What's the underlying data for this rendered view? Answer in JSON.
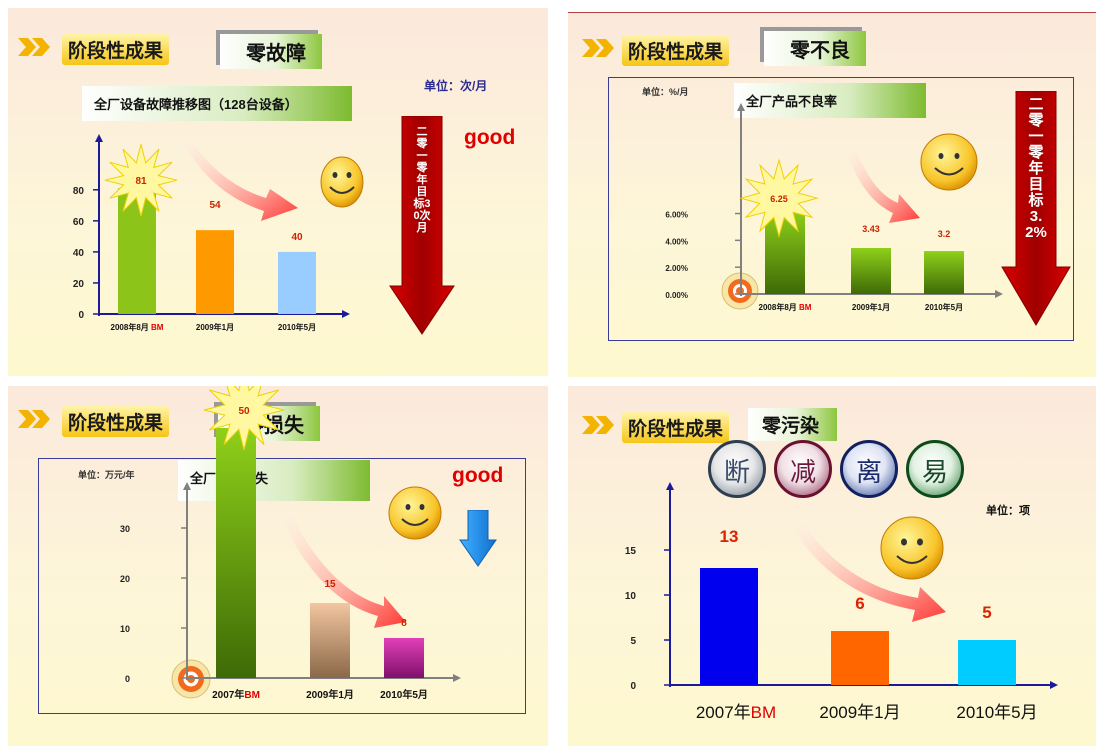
{
  "common": {
    "stage_badge": "阶段性成果"
  },
  "panel1": {
    "topic": "零故障",
    "unit": "单位：次/月",
    "good": "good",
    "arrow_text": "二零一零年目标30次月",
    "chart_title": "全厂设备故障推移图（128台设备）"
  },
  "panel2": {
    "topic": "零不良",
    "unit": "单位：%/月",
    "arrow_text": "二零一零年目标3.2%",
    "chart_title": "全厂产品不良率"
  },
  "panel3": {
    "topic": "零损失",
    "unit": "单位：万元/年",
    "good": "good",
    "chart_title": "全厂资源损失"
  },
  "panel4": {
    "topic": "零污染",
    "unit": "单位：项",
    "circles": [
      "断",
      "减",
      "离",
      "易"
    ]
  },
  "chart_data": [
    {
      "type": "bar",
      "title": "全厂设备故障推移图（128台设备）",
      "categories": [
        "2008年8月 BM",
        "2009年1月",
        "2010年5月"
      ],
      "values": [
        81,
        54,
        40
      ],
      "data_labels": [
        "81",
        "54",
        "40"
      ],
      "yticks": [
        "0",
        "20",
        "40",
        "60",
        "80"
      ],
      "ylim": [
        0,
        95
      ],
      "colors": [
        "#8cc41a",
        "#ff9900",
        "#99ccff"
      ]
    },
    {
      "type": "bar",
      "title": "全厂产品不良率",
      "categories": [
        "2008年8月 BM",
        "2009年1月",
        "2010年5月"
      ],
      "values": [
        6.25,
        3.43,
        3.2
      ],
      "data_labels": [
        "6.25",
        "3.43",
        "3.2"
      ],
      "yticks": [
        "0.00%",
        "2.00%",
        "4.00%",
        "6.00%"
      ],
      "ylim": [
        0,
        8.5
      ],
      "colors": [
        "#6aaa10",
        "#6aaa10",
        "#6aaa10"
      ]
    },
    {
      "type": "bar",
      "title": "全厂资源损失",
      "categories": [
        "2007年BM",
        "2009年1月",
        "2010年5月"
      ],
      "values": [
        50,
        15,
        8
      ],
      "data_labels": [
        "50",
        "15",
        "8"
      ],
      "yticks": [
        "0",
        "10",
        "20",
        "30"
      ],
      "ylim": [
        0,
        40
      ],
      "colors": [
        "#6aaa10",
        "#d8a070",
        "#c0108a"
      ]
    },
    {
      "type": "bar",
      "categories": [
        "2007年BM",
        "2009年1月",
        "2010年5月"
      ],
      "values": [
        13,
        6,
        5
      ],
      "data_labels": [
        "13",
        "6",
        "5"
      ],
      "yticks": [
        "0",
        "5",
        "10",
        "15"
      ],
      "ylim": [
        0,
        20
      ],
      "colors": [
        "#0000ee",
        "#ff6600",
        "#00ccff"
      ]
    }
  ]
}
